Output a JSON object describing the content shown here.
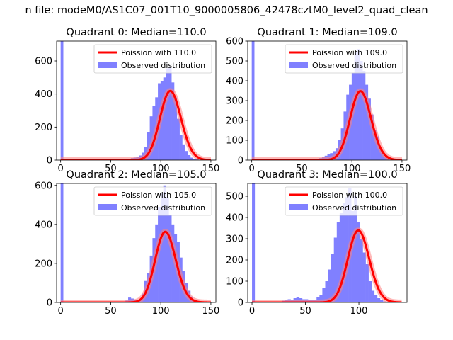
{
  "figure": {
    "suptitle": "n file: modeM0/AS1C07_001T10_9000005806_42478cztM0_level2_quad_clean"
  },
  "colors": {
    "hist": "#8080ff",
    "fit": "#ff0000",
    "fit_glow": "#ff8080",
    "axis": "#000000"
  },
  "chart_data": [
    {
      "type": "bar",
      "title": "Quadrant 0: Median=110.0",
      "xlabel": "",
      "ylabel": "",
      "xlim": [
        -4,
        155
      ],
      "ylim": [
        0,
        720
      ],
      "xticks": [
        0,
        50,
        100,
        150
      ],
      "yticks": [
        0,
        200,
        400,
        600
      ],
      "legend": {
        "position": "top-right",
        "fit_label": "Poission with 110.0",
        "hist_label": "Observed distribution"
      },
      "poisson": {
        "lambda": 110,
        "scale": 11000
      },
      "spike": {
        "x0": 0,
        "x1": 2.7,
        "value": 720
      },
      "bins": {
        "start": 62,
        "width": 2.7,
        "values": [
          3,
          5,
          8,
          12,
          15,
          18,
          28,
          45,
          80,
          170,
          265,
          330,
          380,
          465,
          480,
          500,
          555,
          565,
          470,
          380,
          250,
          150,
          95,
          55,
          30,
          15,
          8,
          4
        ]
      }
    },
    {
      "type": "bar",
      "title": "Quadrant 1: Median=109.0",
      "xlabel": "",
      "ylabel": "",
      "xlim": [
        -4,
        155
      ],
      "ylim": [
        0,
        600
      ],
      "xticks": [
        0,
        50,
        100,
        150
      ],
      "yticks": [
        0,
        100,
        200,
        300,
        400,
        500,
        600
      ],
      "legend": {
        "position": "top-right",
        "fit_label": "Poission with 109.0",
        "hist_label": "Observed distribution"
      },
      "poisson": {
        "lambda": 109,
        "scale": 9100
      },
      "spike": {
        "x0": 0,
        "x1": 2.7,
        "value": 600
      },
      "bins": {
        "start": 62,
        "width": 2.7,
        "values": [
          3,
          6,
          10,
          15,
          22,
          30,
          35,
          45,
          60,
          100,
          160,
          245,
          330,
          380,
          440,
          545,
          560,
          500,
          450,
          380,
          310,
          230,
          150,
          120,
          60,
          35,
          15,
          5
        ]
      }
    },
    {
      "type": "bar",
      "title": "Quadrant 2: Median=105.0",
      "xlabel": "",
      "ylabel": "",
      "xlim": [
        -4,
        155
      ],
      "ylim": [
        0,
        610
      ],
      "xticks": [
        0,
        50,
        100,
        150
      ],
      "yticks": [
        0,
        200,
        400,
        600
      ],
      "legend": {
        "position": "top-right",
        "fit_label": "Poission with 105.0",
        "hist_label": "Observed distribution"
      },
      "poisson": {
        "lambda": 105,
        "scale": 9300
      },
      "spike": {
        "x0": 0,
        "x1": 2.7,
        "value": 610
      },
      "bins": {
        "start": 62,
        "width": 2.7,
        "values": [
          5,
          10,
          25,
          20,
          15,
          10,
          12,
          45,
          110,
          150,
          240,
          330,
          400,
          490,
          560,
          600,
          540,
          450,
          400,
          350,
          310,
          230,
          160,
          100,
          60,
          30,
          15,
          5
        ]
      }
    },
    {
      "type": "bar",
      "title": "Quadrant 3: Median=100.0",
      "xlabel": "",
      "ylabel": "",
      "xlim": [
        -4,
        145
      ],
      "ylim": [
        0,
        560
      ],
      "xticks": [
        0,
        50,
        100
      ],
      "yticks": [
        0,
        100,
        200,
        300,
        400,
        500
      ],
      "legend": {
        "position": "top-right",
        "fit_label": "Poission with 100.0",
        "hist_label": "Observed distribution"
      },
      "poisson": {
        "lambda": 100,
        "scale": 8500
      },
      "spike": {
        "x0": 0,
        "x1": 2.7,
        "value": 560
      },
      "bins": {
        "start": 28,
        "width": 2.7,
        "values": [
          8,
          12,
          15,
          12,
          20,
          25,
          20,
          15,
          15,
          12,
          10,
          12,
          25,
          35,
          70,
          100,
          155,
          230,
          305,
          380,
          420,
          470,
          495,
          540,
          430,
          500,
          380,
          300,
          235,
          180,
          100,
          55,
          35,
          20,
          10,
          5
        ]
      }
    }
  ]
}
